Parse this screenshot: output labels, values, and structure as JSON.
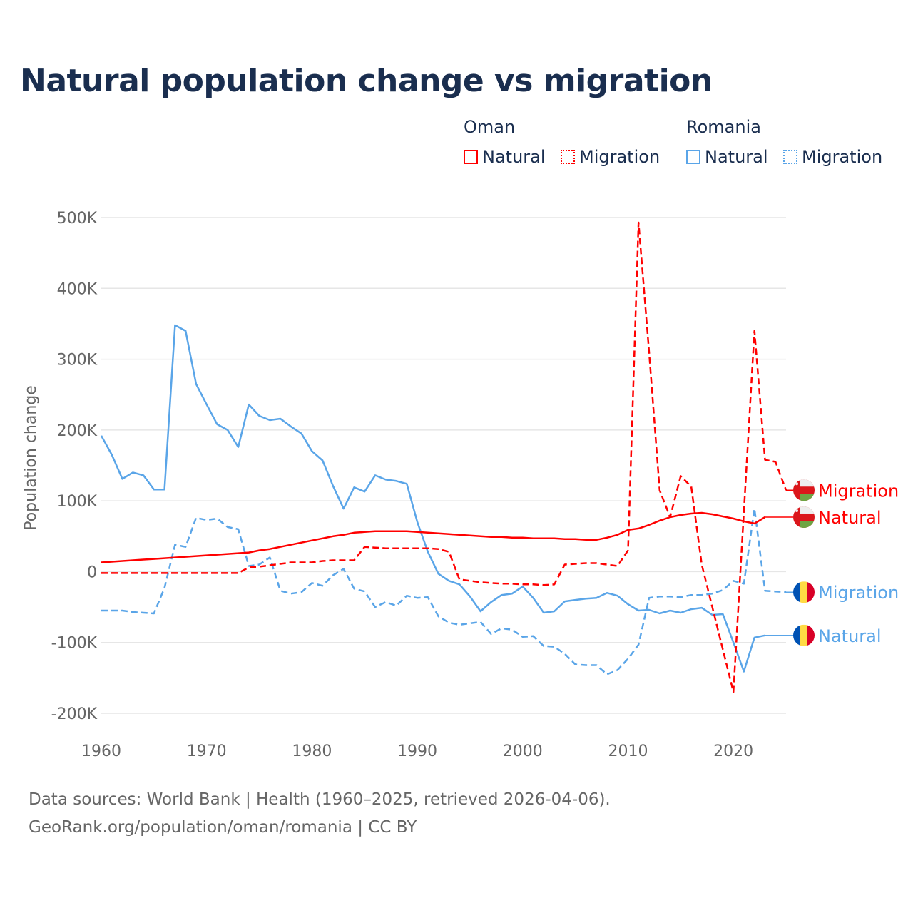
{
  "title": "Natural population change vs migration",
  "legend": {
    "groups": [
      {
        "name": "Oman",
        "color": "#ff0000",
        "items": [
          "Natural",
          "Migration"
        ]
      },
      {
        "name": "Romania",
        "color": "#5aa5e8",
        "items": [
          "Natural",
          "Migration"
        ]
      }
    ]
  },
  "footer": {
    "line1": "Data sources: World Bank | Health (1960–2025, retrieved 2026-04-06).",
    "line2": "GeoRank.org/population/oman/romania | CC BY"
  },
  "chart_data": {
    "type": "line",
    "title": "Natural population change vs migration",
    "xlabel": "",
    "ylabel": "Population change",
    "xlim": [
      1960,
      2025
    ],
    "ylim": [
      -200000,
      500000
    ],
    "x_ticks": [
      1960,
      1970,
      1980,
      1990,
      2000,
      2010,
      2020
    ],
    "x_tick_labels": [
      "1960",
      "1970",
      "1980",
      "1990",
      "2000",
      "2010",
      "2020"
    ],
    "y_ticks": [
      -200000,
      -100000,
      0,
      100000,
      200000,
      300000,
      400000,
      500000
    ],
    "y_tick_labels": [
      "-200K",
      "-100K",
      "0",
      "100K",
      "200K",
      "300K",
      "400K",
      "500K"
    ],
    "grid": true,
    "legend_placement": "top-right",
    "x_start": 1960,
    "series": [
      {
        "name": "Oman Natural",
        "label": "Natural",
        "country": "Oman",
        "flag": "oman",
        "color": "#ff0000",
        "dash": false,
        "values": [
          13,
          14,
          15,
          16,
          17,
          18,
          19,
          20,
          21,
          22,
          23,
          24,
          25,
          26,
          27,
          30,
          32,
          35,
          38,
          41,
          44,
          47,
          50,
          52,
          55,
          56,
          57,
          57,
          57,
          57,
          56,
          55,
          54,
          53,
          52,
          51,
          50,
          49,
          49,
          48,
          48,
          47,
          47,
          47,
          46,
          46,
          45,
          45,
          48,
          52,
          59,
          61,
          66,
          72,
          77,
          80,
          82,
          83,
          81,
          78,
          75,
          71,
          68,
          77
        ]
      },
      {
        "name": "Oman Migration",
        "label": "Migration",
        "country": "Oman",
        "flag": "oman",
        "color": "#ff0000",
        "dash": true,
        "values": [
          -2,
          -2,
          -2,
          -2,
          -2,
          -2,
          -2,
          -2,
          -2,
          -2,
          -2,
          -2,
          -2,
          -2,
          6,
          7,
          9,
          11,
          13,
          13,
          13,
          15,
          16,
          16,
          16,
          35,
          34,
          33,
          33,
          33,
          33,
          33,
          32,
          28,
          -11,
          -13,
          -15,
          -16,
          -17,
          -17,
          -18,
          -18,
          -19,
          -18,
          10,
          11,
          12,
          12,
          10,
          8,
          30,
          493,
          310,
          115,
          77,
          135,
          120,
          10,
          -50,
          -110,
          -170,
          85,
          340,
          158,
          155,
          115
        ]
      },
      {
        "name": "Romania Natural",
        "label": "Natural",
        "country": "Romania",
        "flag": "romania",
        "color": "#5aa5e8",
        "dash": false,
        "values": [
          192,
          165,
          131,
          140,
          136,
          116,
          116,
          348,
          340,
          265,
          236,
          208,
          200,
          176,
          236,
          220,
          214,
          216,
          205,
          195,
          170,
          157,
          121,
          89,
          119,
          113,
          136,
          130,
          128,
          124,
          70,
          28,
          -3,
          -13,
          -18,
          -35,
          -56,
          -43,
          -33,
          -31,
          -21,
          -37,
          -58,
          -56,
          -42,
          -40,
          -38,
          -37,
          -30,
          -34,
          -46,
          -55,
          -54,
          -59,
          -55,
          -58,
          -53,
          -51,
          -61,
          -60,
          -100,
          -141,
          -93,
          -90
        ]
      },
      {
        "name": "Romania Migration",
        "label": "Migration",
        "country": "Romania",
        "flag": "romania",
        "color": "#5aa5e8",
        "dash": true,
        "values": [
          -55,
          -55,
          -55,
          -57,
          -58,
          -59,
          -23,
          38,
          35,
          76,
          73,
          75,
          63,
          60,
          8,
          10,
          20,
          -27,
          -31,
          -29,
          -16,
          -20,
          -5,
          4,
          -24,
          -28,
          -50,
          -43,
          -48,
          -34,
          -37,
          -36,
          -63,
          -72,
          -75,
          -73,
          -71,
          -88,
          -80,
          -82,
          -92,
          -91,
          -105,
          -106,
          -116,
          -131,
          -132,
          -132,
          -145,
          -139,
          -123,
          -103,
          -37,
          -35,
          -35,
          -36,
          -33,
          -33,
          -31,
          -26,
          -13,
          -17,
          89,
          -27,
          -28,
          -29
        ]
      }
    ],
    "value_units": "thousands"
  }
}
